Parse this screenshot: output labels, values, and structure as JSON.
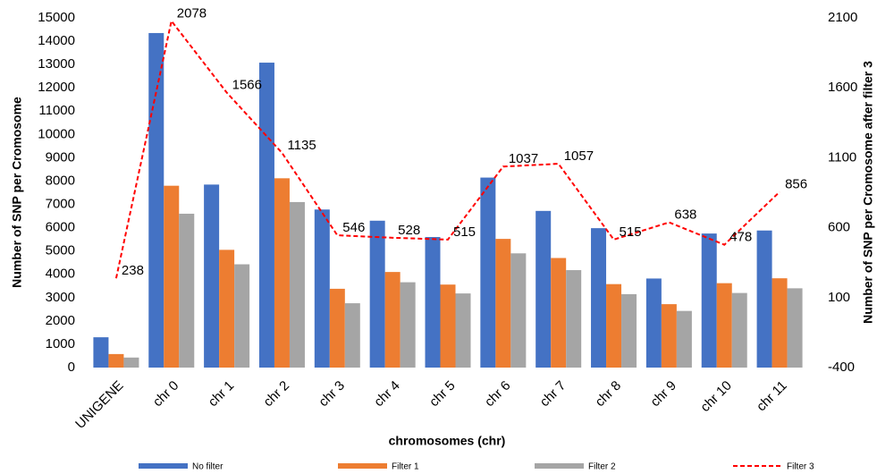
{
  "chart_data": {
    "type": "bar",
    "x_label": "chromosomes (chr)",
    "y_label": "Number of SNP per Cromosome",
    "y2_label": "Number of SNP per Cromosome after filter 3",
    "categories": [
      "UNIGENE",
      "chr 0",
      "chr 1",
      "chr 2",
      "chr 3",
      "chr 4",
      "chr 5",
      "chr 6",
      "chr 7",
      "chr 8",
      "chr 9",
      "chr 10",
      "chr 11"
    ],
    "series": [
      {
        "name": "No filter",
        "color": "#4472c4",
        "values": [
          1300,
          14350,
          7850,
          13080,
          6780,
          6300,
          5600,
          8150,
          6720,
          5980,
          3820,
          5750,
          5880
        ]
      },
      {
        "name": "Filter 1",
        "color": "#ed7d31",
        "values": [
          580,
          7800,
          5050,
          8120,
          3380,
          4100,
          3560,
          5520,
          4700,
          3580,
          2720,
          3620,
          3830
        ]
      },
      {
        "name": "Filter 2",
        "color": "#a5a5a5",
        "values": [
          430,
          6600,
          4430,
          7100,
          2760,
          3660,
          3180,
          4900,
          4180,
          3150,
          2430,
          3200,
          3400
        ]
      },
      {
        "name": "Filter 3",
        "color": "#ff0000",
        "type": "line",
        "axis": "y2",
        "values": [
          238,
          2078,
          1566,
          1135,
          546,
          528,
          515,
          1037,
          1057,
          515,
          638,
          478,
          856
        ]
      }
    ],
    "ylim": [
      0,
      15000
    ],
    "yticks": [
      0,
      1000,
      2000,
      3000,
      4000,
      5000,
      6000,
      7000,
      8000,
      9000,
      10000,
      11000,
      12000,
      13000,
      14000,
      15000
    ],
    "y2lim": [
      -400,
      2100
    ],
    "y2ticks": [
      -400,
      100,
      600,
      1100,
      1600,
      2100
    ],
    "grid": false,
    "legend": "bottom"
  }
}
